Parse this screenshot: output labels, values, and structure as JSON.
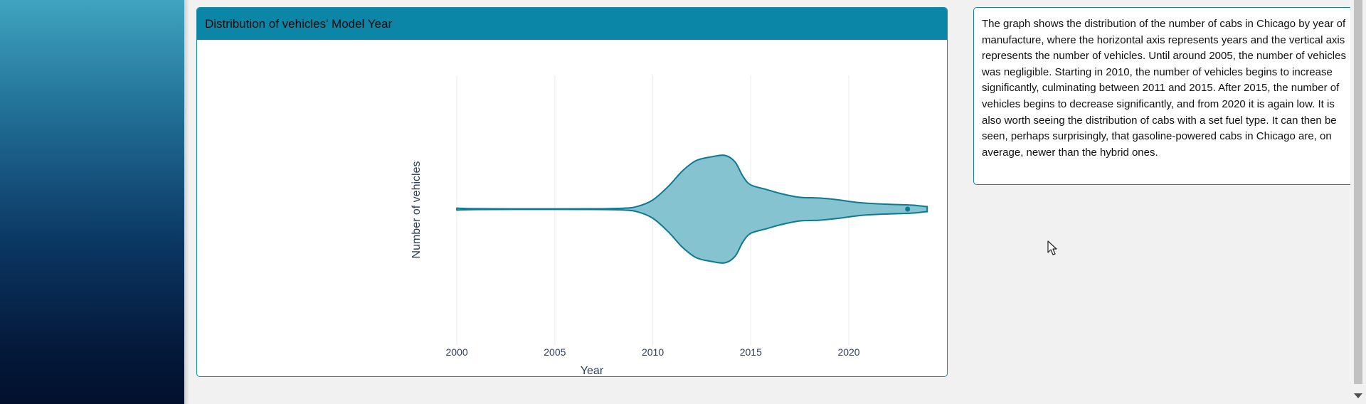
{
  "chart_card": {
    "title": "Distribution of vehicles' Model Year"
  },
  "description": {
    "text": "The graph shows the distribution of the number of cabs in Chicago by year of manufacture, where the horizontal axis represents years and the vertical axis represents the number of vehicles. Until around 2005, the number of vehicles was negligible. Starting in 2010, the number of vehicles begins to increase significantly, culminating between 2011 and 2015. After 2015, the number of vehicles begins to decrease significantly, and from 2020 it is again low. It is also worth seeing the distribution of cabs with a set fuel type. It can then be seen, perhaps surprisingly, that gasoline-powered cabs in Chicago are, on average, newer than the hybrid ones."
  },
  "colors": {
    "accent": "#0b86a6",
    "violin_fill": "#86c3d1",
    "violin_line": "#0e7a92",
    "grid": "#ececec"
  },
  "chart_data": {
    "type": "violin",
    "title": "Distribution of vehicles' Model Year",
    "xlabel": "Year",
    "ylabel": "Number of vehicles",
    "xlim": [
      1998,
      2024.5
    ],
    "x_ticks": [
      2000,
      2005,
      2010,
      2015,
      2020
    ],
    "grid": true,
    "violin": {
      "density_profile": [
        {
          "year": 2000.0,
          "density": 0.015
        },
        {
          "year": 2001.0,
          "density": 0.006
        },
        {
          "year": 2004.0,
          "density": 0.004
        },
        {
          "year": 2007.0,
          "density": 0.005
        },
        {
          "year": 2008.5,
          "density": 0.014
        },
        {
          "year": 2009.2,
          "density": 0.04
        },
        {
          "year": 2010.0,
          "density": 0.14
        },
        {
          "year": 2010.8,
          "density": 0.35
        },
        {
          "year": 2011.5,
          "density": 0.58
        },
        {
          "year": 2012.2,
          "density": 0.74
        },
        {
          "year": 2013.0,
          "density": 0.8
        },
        {
          "year": 2013.7,
          "density": 0.82
        },
        {
          "year": 2014.2,
          "density": 0.72
        },
        {
          "year": 2014.6,
          "density": 0.5
        },
        {
          "year": 2015.0,
          "density": 0.37
        },
        {
          "year": 2015.8,
          "density": 0.3
        },
        {
          "year": 2016.5,
          "density": 0.24
        },
        {
          "year": 2017.5,
          "density": 0.18
        },
        {
          "year": 2018.5,
          "density": 0.17
        },
        {
          "year": 2019.5,
          "density": 0.14
        },
        {
          "year": 2020.5,
          "density": 0.1
        },
        {
          "year": 2021.5,
          "density": 0.08
        },
        {
          "year": 2022.5,
          "density": 0.07
        },
        {
          "year": 2023.3,
          "density": 0.06
        },
        {
          "year": 2023.9,
          "density": 0.04
        },
        {
          "year": 2024.0,
          "density": 0.04
        }
      ],
      "outlier_points": [
        2023.0
      ]
    }
  }
}
